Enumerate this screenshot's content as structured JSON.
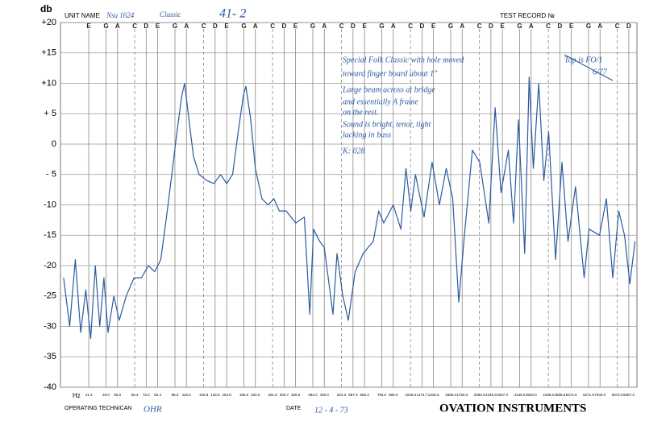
{
  "chart_data": {
    "type": "line",
    "y_unit": "db",
    "header": {
      "unit_name_label": "UNIT NAME",
      "unit_name": "Nsu 1624",
      "unit_model": "Classic",
      "record_id": "41- 2",
      "test_record_label": "TEST RECORD №"
    },
    "footer": {
      "x_unit": "Hz",
      "technician_label": "OPERATING TECHNICAN",
      "technician": "OHR",
      "date_label": "DATE",
      "date": "12 - 4 - 73",
      "company": "OVATION INSTRUMENTS"
    },
    "annotations": [
      "Special Folk Classic with hole moved",
      "toward finger board about 1\"",
      "Large beam across at bridge",
      "and essentially A frame",
      "on the rest.",
      "Sound is bright, tenor, tight",
      "lacking in bass",
      "K: 028",
      "Top is FO/1",
      "6/77"
    ],
    "notes": [
      "E",
      "G",
      "A",
      "C",
      "D",
      "E",
      "G",
      "A",
      "C",
      "D",
      "E",
      "G",
      "A",
      "C",
      "D",
      "E",
      "G",
      "A",
      "C",
      "D",
      "E",
      "G",
      "A",
      "C",
      "D",
      "E",
      "G",
      "A",
      "C",
      "D",
      "E",
      "G",
      "A",
      "C",
      "D",
      "E",
      "G",
      "A",
      "C",
      "D"
    ],
    "x_log": true,
    "xlim": [
      31,
      10200
    ],
    "xticks": [
      {
        "value": 41.2,
        "label": "41.2"
      },
      {
        "value": 49.0,
        "label": "49.0"
      },
      {
        "value": 55.0,
        "label": "55.0"
      },
      {
        "value": 65.4,
        "label": "65.4"
      },
      {
        "value": 73.4,
        "label": "73.4"
      },
      {
        "value": 82.4,
        "label": "82.4"
      },
      {
        "value": 98.0,
        "label": "98.0"
      },
      {
        "value": 110.0,
        "label": "110.0"
      },
      {
        "value": 130.8,
        "label": "130.8"
      },
      {
        "value": 146.8,
        "label": "146.8"
      },
      {
        "value": 164.8,
        "label": "164.8"
      },
      {
        "value": 196.0,
        "label": "196.0"
      },
      {
        "value": 220.0,
        "label": "220.0"
      },
      {
        "value": 261.6,
        "label": "261.6"
      },
      {
        "value": 293.7,
        "label": "293.7"
      },
      {
        "value": 329.6,
        "label": "329.6"
      },
      {
        "value": 392.0,
        "label": "392.0"
      },
      {
        "value": 440.0,
        "label": "440.0"
      },
      {
        "value": 523.3,
        "label": "523.3"
      },
      {
        "value": 587.3,
        "label": "587.3"
      },
      {
        "value": 659.3,
        "label": "659.3"
      },
      {
        "value": 784.0,
        "label": "784.0"
      },
      {
        "value": 880.0,
        "label": "880.0"
      },
      {
        "value": 1046.5,
        "label": "1046.5"
      },
      {
        "value": 1174.7,
        "label": "1174.7"
      },
      {
        "value": 1318.5,
        "label": "1318.5"
      },
      {
        "value": 1568.0,
        "label": "1568.0"
      },
      {
        "value": 1760.0,
        "label": "1760.0"
      },
      {
        "value": 2093.0,
        "label": "2093.0"
      },
      {
        "value": 2349.3,
        "label": "2349.3"
      },
      {
        "value": 2637.0,
        "label": "2637.0"
      },
      {
        "value": 3136.0,
        "label": "3136.0"
      },
      {
        "value": 3520.0,
        "label": "3520.0"
      },
      {
        "value": 4186.0,
        "label": "4186.0"
      },
      {
        "value": 4698.6,
        "label": "4698.6"
      },
      {
        "value": 5274.0,
        "label": "5274.0"
      },
      {
        "value": 6271.9,
        "label": "6271.9"
      },
      {
        "value": 7040.0,
        "label": "7040.0"
      },
      {
        "value": 8372.0,
        "label": "8372.0"
      },
      {
        "value": 9397.3,
        "label": "9397.3"
      }
    ],
    "ylim": [
      -40,
      20
    ],
    "yticks": [
      {
        "value": 20,
        "label": "+20"
      },
      {
        "value": 15,
        "label": "+15"
      },
      {
        "value": 10,
        "label": "+10"
      },
      {
        "value": 5,
        "label": "+ 5"
      },
      0,
      {
        "value": -5,
        "label": "- 5"
      },
      -10,
      -15,
      -20,
      -25,
      -30,
      -35,
      -40
    ],
    "grid": true,
    "color": "#2a5aa0",
    "x": [
      32,
      34,
      36,
      38,
      40,
      42,
      44,
      46,
      48,
      50,
      53,
      56,
      60,
      65,
      70,
      75,
      80,
      85,
      90,
      95,
      100,
      105,
      108,
      112,
      118,
      125,
      135,
      145,
      155,
      165,
      175,
      185,
      195,
      200,
      210,
      220,
      235,
      250,
      265,
      280,
      300,
      330,
      360,
      380,
      395,
      420,
      440,
      480,
      500,
      530,
      560,
      600,
      650,
      720,
      760,
      800,
      880,
      950,
      1000,
      1050,
      1100,
      1200,
      1300,
      1400,
      1500,
      1600,
      1700,
      1800,
      1950,
      2100,
      2300,
      2450,
      2600,
      2800,
      2950,
      3100,
      3300,
      3450,
      3600,
      3800,
      4000,
      4200,
      4500,
      4800,
      5100,
      5500,
      6000,
      6300,
      7000,
      7500,
      8000,
      8500,
      9000,
      9500,
      10000
    ],
    "values": [
      -22,
      -30,
      -19,
      -31,
      -24,
      -32,
      -20,
      -30,
      -22,
      -31,
      -25,
      -29,
      -25,
      -22,
      -22,
      -20,
      -21,
      -19,
      -12,
      -5,
      2,
      8,
      10,
      5,
      -2,
      -5,
      -6,
      -6.5,
      -5,
      -6.5,
      -5,
      2,
      8,
      9.5,
      4,
      -4,
      -9,
      -10,
      -9,
      -11,
      -11,
      -13,
      -12,
      -28,
      -14,
      -16,
      -17,
      -28,
      -18,
      -25,
      -29,
      -21,
      -18,
      -16,
      -11,
      -13,
      -10,
      -14,
      -4,
      -11,
      -5,
      -12,
      -3,
      -10,
      -4,
      -9,
      -26,
      -15,
      -1,
      -3,
      -13,
      6,
      -8,
      -1,
      -13,
      4,
      -18,
      11,
      -4,
      10,
      -6,
      2,
      -19,
      -3,
      -16,
      -7,
      -22,
      -14,
      -15,
      -9,
      -22,
      -11,
      -15,
      -23,
      -16
    ]
  }
}
